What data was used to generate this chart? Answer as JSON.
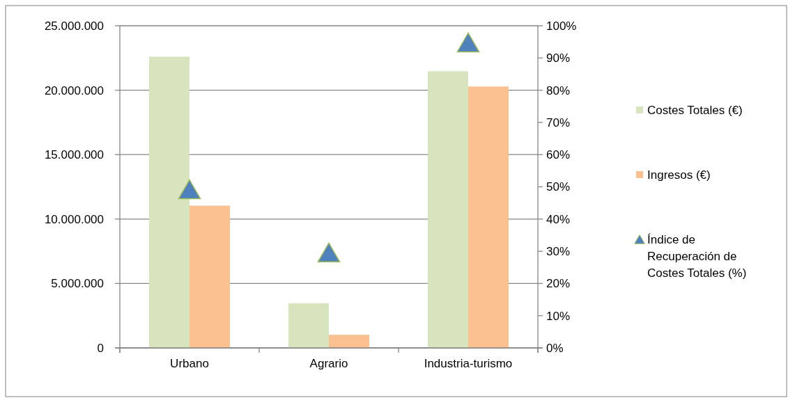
{
  "chart_data": {
    "type": "bar",
    "categories": [
      "Urbano",
      "Agrario",
      "Industria-turismo"
    ],
    "series": [
      {
        "name": "Costes Totales (€)",
        "color": "#d7e4bd",
        "values": [
          22600000,
          3470000,
          21470000
        ]
      },
      {
        "name": "Ingresos (€)",
        "color": "#fac090",
        "values": [
          11040000,
          1020000,
          20280000
        ]
      },
      {
        "name": "Índice de Recuperación de Costes Totales (%)",
        "type": "scatter",
        "axis": "y2",
        "color": "#4f81bd",
        "marker": "triangle",
        "values": [
          48.9,
          29.3,
          94.5
        ]
      }
    ],
    "ylim": [
      0,
      25000000
    ],
    "yticks": [
      {
        "value": 0,
        "label": "0"
      },
      {
        "value": 5000000,
        "label": "5.000.000"
      },
      {
        "value": 10000000,
        "label": "10.000.000"
      },
      {
        "value": 15000000,
        "label": "15.000.000"
      },
      {
        "value": 20000000,
        "label": "20.000.000"
      },
      {
        "value": 25000000,
        "label": "25.000.000"
      }
    ],
    "y2lim": [
      0,
      100
    ],
    "y2ticks": [
      {
        "value": 0,
        "label": "0%"
      },
      {
        "value": 10,
        "label": "10%"
      },
      {
        "value": 20,
        "label": "20%"
      },
      {
        "value": 30,
        "label": "30%"
      },
      {
        "value": 40,
        "label": "40%"
      },
      {
        "value": 50,
        "label": "50%"
      },
      {
        "value": 60,
        "label": "60%"
      },
      {
        "value": 70,
        "label": "70%"
      },
      {
        "value": 80,
        "label": "80%"
      },
      {
        "value": 90,
        "label": "90%"
      },
      {
        "value": 100,
        "label": "100%"
      }
    ],
    "grid": "y",
    "legend": "right"
  }
}
